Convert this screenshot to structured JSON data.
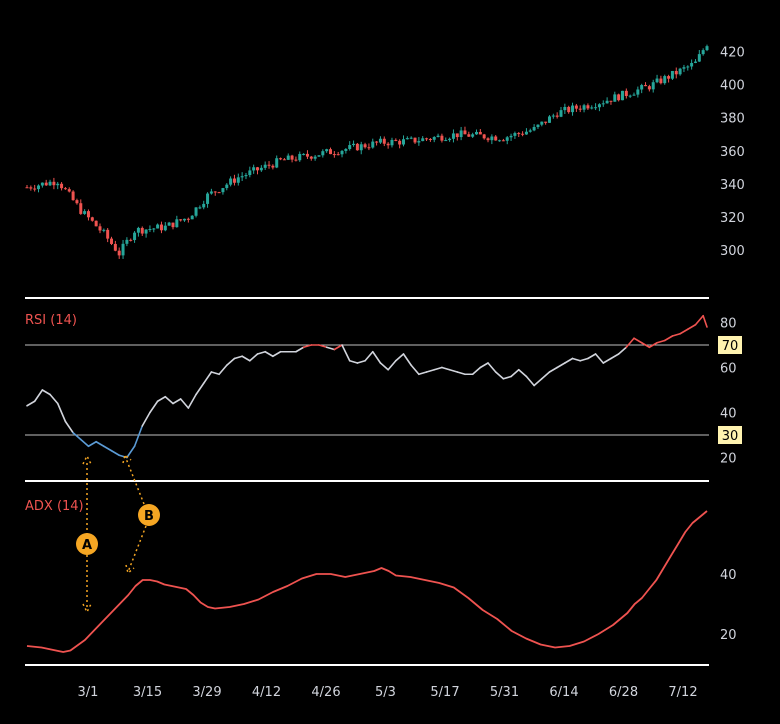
{
  "colors": {
    "background": "#000000",
    "up": "#26a69a",
    "down": "#ef5350",
    "rsi_neutral": "#d1d4dc",
    "rsi_oversold": "#5b9bd5",
    "rsi_overbought": "#ef5350",
    "adx_line": "#ef5350",
    "callout": "#f5a623",
    "separator": "#ffffff",
    "axis_text": "#d1d4dc",
    "level_badge_bg": "#fff3b0"
  },
  "panels": {
    "rsi_label": "RSI (14)",
    "adx_label": "ADX (14)"
  },
  "callouts": [
    {
      "letter": "A",
      "label": "A"
    },
    {
      "letter": "B",
      "label": "B"
    }
  ],
  "chart_data": [
    {
      "type": "candlestick",
      "panel": "price",
      "yticks": [
        300,
        320,
        340,
        360,
        380,
        400,
        420
      ],
      "ylim": [
        285,
        433
      ],
      "xticks": [
        "3/1",
        "3/15",
        "3/29",
        "4/12",
        "4/26",
        "5/3",
        "5/17",
        "5/31",
        "6/14",
        "6/28",
        "7/12"
      ],
      "trend": [
        [
          0,
          338
        ],
        [
          8,
          342
        ],
        [
          14,
          324
        ],
        [
          20,
          310
        ],
        [
          24,
          298
        ],
        [
          28,
          312
        ],
        [
          36,
          314
        ],
        [
          42,
          320
        ],
        [
          47,
          333
        ],
        [
          55,
          344
        ],
        [
          66,
          354
        ],
        [
          78,
          359
        ],
        [
          92,
          365
        ],
        [
          100,
          366
        ],
        [
          112,
          370
        ],
        [
          124,
          368
        ],
        [
          132,
          373
        ],
        [
          138,
          383
        ],
        [
          150,
          390
        ],
        [
          162,
          399
        ],
        [
          168,
          406
        ],
        [
          174,
          413
        ],
        [
          177,
          425
        ]
      ]
    },
    {
      "type": "line",
      "panel": "rsi",
      "name": "RSI (14)",
      "yticks": [
        20,
        40,
        60,
        80
      ],
      "ylim": [
        10,
        90
      ],
      "levels": [
        70,
        30
      ],
      "points": [
        [
          0,
          43
        ],
        [
          2,
          45
        ],
        [
          4,
          50
        ],
        [
          6,
          48
        ],
        [
          8,
          44
        ],
        [
          10,
          36
        ],
        [
          12,
          31
        ],
        [
          14,
          28
        ],
        [
          16,
          25
        ],
        [
          18,
          27
        ],
        [
          20,
          25
        ],
        [
          22,
          23
        ],
        [
          24,
          21
        ],
        [
          26,
          20
        ],
        [
          28,
          25
        ],
        [
          30,
          34
        ],
        [
          32,
          40
        ],
        [
          34,
          45
        ],
        [
          36,
          47
        ],
        [
          38,
          44
        ],
        [
          40,
          46
        ],
        [
          42,
          42
        ],
        [
          44,
          48
        ],
        [
          46,
          53
        ],
        [
          48,
          58
        ],
        [
          50,
          57
        ],
        [
          52,
          61
        ],
        [
          54,
          64
        ],
        [
          56,
          65
        ],
        [
          58,
          63
        ],
        [
          60,
          66
        ],
        [
          62,
          67
        ],
        [
          64,
          65
        ],
        [
          66,
          67
        ],
        [
          68,
          67
        ],
        [
          70,
          67
        ],
        [
          72,
          69
        ],
        [
          74,
          70
        ],
        [
          76,
          70
        ],
        [
          78,
          69
        ],
        [
          80,
          68
        ],
        [
          82,
          70
        ],
        [
          84,
          63
        ],
        [
          86,
          62
        ],
        [
          88,
          63
        ],
        [
          90,
          67
        ],
        [
          92,
          62
        ],
        [
          94,
          59
        ],
        [
          96,
          63
        ],
        [
          98,
          66
        ],
        [
          100,
          61
        ],
        [
          102,
          57
        ],
        [
          104,
          58
        ],
        [
          106,
          59
        ],
        [
          108,
          60
        ],
        [
          110,
          59
        ],
        [
          112,
          58
        ],
        [
          114,
          57
        ],
        [
          116,
          57
        ],
        [
          118,
          60
        ],
        [
          120,
          62
        ],
        [
          122,
          58
        ],
        [
          124,
          55
        ],
        [
          126,
          56
        ],
        [
          128,
          59
        ],
        [
          130,
          56
        ],
        [
          132,
          52
        ],
        [
          134,
          55
        ],
        [
          136,
          58
        ],
        [
          138,
          60
        ],
        [
          140,
          62
        ],
        [
          142,
          64
        ],
        [
          144,
          63
        ],
        [
          146,
          64
        ],
        [
          148,
          66
        ],
        [
          150,
          62
        ],
        [
          152,
          64
        ],
        [
          154,
          66
        ],
        [
          156,
          69
        ],
        [
          158,
          73
        ],
        [
          160,
          71
        ],
        [
          162,
          69
        ],
        [
          164,
          71
        ],
        [
          166,
          72
        ],
        [
          168,
          74
        ],
        [
          170,
          75
        ],
        [
          172,
          77
        ],
        [
          174,
          79
        ],
        [
          176,
          83
        ],
        [
          177,
          78
        ]
      ]
    },
    {
      "type": "line",
      "panel": "adx",
      "name": "ADX (14)",
      "yticks": [
        20,
        40
      ],
      "ylim": [
        10,
        60
      ],
      "points": [
        [
          0,
          16
        ],
        [
          4,
          15.5
        ],
        [
          8,
          14.5
        ],
        [
          10,
          14
        ],
        [
          12,
          14.5
        ],
        [
          16,
          18
        ],
        [
          20,
          23
        ],
        [
          24,
          28
        ],
        [
          28,
          33
        ],
        [
          30,
          36
        ],
        [
          32,
          38
        ],
        [
          34,
          38
        ],
        [
          36,
          37.5
        ],
        [
          38,
          36.5
        ],
        [
          40,
          36
        ],
        [
          42,
          35.5
        ],
        [
          44,
          35
        ],
        [
          46,
          33
        ],
        [
          48,
          30.5
        ],
        [
          50,
          29
        ],
        [
          52,
          28.5
        ],
        [
          56,
          29
        ],
        [
          60,
          30
        ],
        [
          64,
          31.5
        ],
        [
          68,
          34
        ],
        [
          72,
          36
        ],
        [
          76,
          38.5
        ],
        [
          80,
          40
        ],
        [
          84,
          40
        ],
        [
          88,
          39
        ],
        [
          92,
          40
        ],
        [
          96,
          41
        ],
        [
          98,
          42
        ],
        [
          100,
          41
        ],
        [
          102,
          39.5
        ],
        [
          106,
          39
        ],
        [
          110,
          38
        ],
        [
          114,
          37
        ],
        [
          118,
          35.5
        ],
        [
          122,
          32
        ],
        [
          126,
          28
        ],
        [
          130,
          25
        ],
        [
          134,
          21
        ],
        [
          138,
          18.5
        ],
        [
          142,
          16.5
        ],
        [
          146,
          15.5
        ],
        [
          150,
          16
        ],
        [
          154,
          17.5
        ],
        [
          158,
          20
        ],
        [
          162,
          23
        ],
        [
          166,
          27
        ],
        [
          168,
          30
        ],
        [
          170,
          32
        ],
        [
          172,
          35
        ],
        [
          174,
          38
        ],
        [
          176,
          42
        ],
        [
          178,
          46
        ],
        [
          180,
          50
        ],
        [
          182,
          54
        ],
        [
          184,
          57
        ],
        [
          186,
          59
        ],
        [
          188,
          61
        ]
      ]
    }
  ]
}
